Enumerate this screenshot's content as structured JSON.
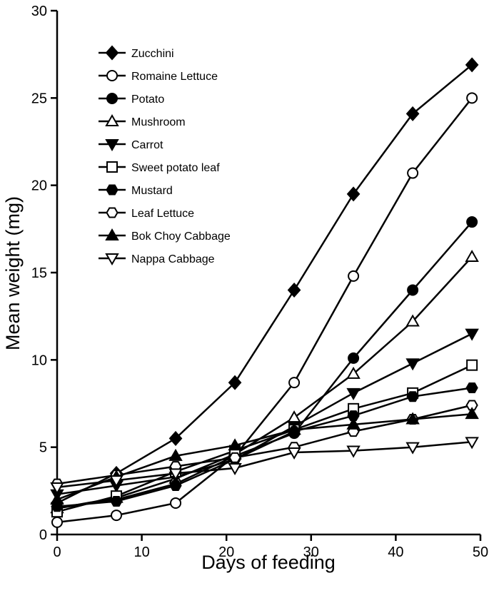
{
  "chart_data": {
    "type": "line",
    "xlabel": "Days of feeding",
    "ylabel": "Mean weight (mg)",
    "xlim": [
      0,
      50
    ],
    "ylim": [
      0,
      30
    ],
    "xticks": [
      0,
      10,
      20,
      30,
      40,
      50
    ],
    "yticks": [
      0,
      5,
      10,
      15,
      20,
      25,
      30
    ],
    "grid": false,
    "legend_position": "top-left",
    "x": [
      0,
      7,
      14,
      21,
      28,
      35,
      42,
      49
    ],
    "series": [
      {
        "name": "Zucchini",
        "marker": "diamond-filled",
        "values": [
          1.8,
          3.5,
          5.5,
          8.7,
          14.0,
          19.5,
          24.1,
          26.9
        ]
      },
      {
        "name": "Romaine Lettuce",
        "marker": "circle-open",
        "values": [
          0.7,
          1.1,
          1.8,
          4.5,
          8.7,
          14.8,
          20.7,
          25.0
        ]
      },
      {
        "name": "Potato",
        "marker": "circle-filled",
        "values": [
          1.5,
          2.0,
          2.9,
          4.5,
          5.8,
          10.1,
          14.0,
          17.9
        ]
      },
      {
        "name": "Mushroom",
        "marker": "triangle-up-open",
        "values": [
          1.5,
          2.1,
          3.2,
          4.6,
          6.7,
          9.2,
          12.2,
          15.9
        ]
      },
      {
        "name": "Carrot",
        "marker": "triangle-down-filled",
        "values": [
          2.3,
          2.8,
          3.3,
          4.3,
          6.2,
          8.1,
          9.8,
          11.5
        ]
      },
      {
        "name": "Sweet potato leaf",
        "marker": "square-open",
        "values": [
          1.3,
          2.2,
          3.6,
          4.8,
          6.0,
          7.2,
          8.1,
          9.7
        ]
      },
      {
        "name": "Mustard",
        "marker": "hexagon-filled",
        "values": [
          1.6,
          1.9,
          2.8,
          4.3,
          5.9,
          6.8,
          7.9,
          8.4
        ]
      },
      {
        "name": "Leaf Lettuce",
        "marker": "hexagon-open",
        "values": [
          2.9,
          3.4,
          3.9,
          4.4,
          5.0,
          5.9,
          6.6,
          7.4
        ]
      },
      {
        "name": "Bok Choy Cabbage",
        "marker": "triangle-up-filled",
        "values": [
          2.0,
          3.3,
          4.5,
          5.1,
          6.0,
          6.3,
          6.6,
          6.9
        ]
      },
      {
        "name": "Nappa Cabbage",
        "marker": "triangle-down-open",
        "values": [
          2.7,
          3.1,
          3.5,
          3.8,
          4.7,
          4.8,
          5.0,
          5.3
        ]
      }
    ]
  }
}
